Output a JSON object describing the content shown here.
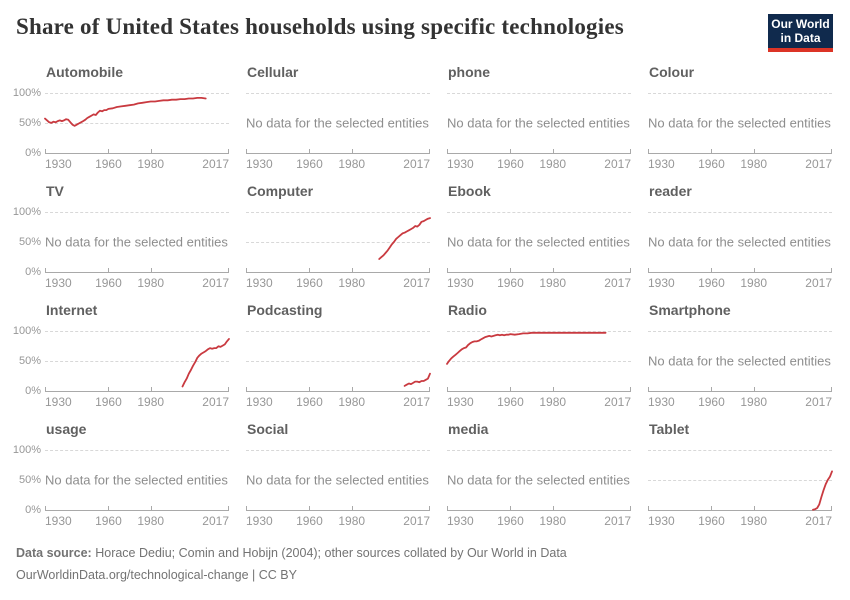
{
  "header": {
    "title": "Share of United States households using specific technologies",
    "logo_line1": "Our World",
    "logo_line2": "in Data"
  },
  "no_data_text": "No data for the selected entities",
  "colors": {
    "line": "#c93a40",
    "logo_bg": "#102a4d",
    "logo_red": "#dc3426",
    "gridline": "#d8d8d8",
    "axis": "#a9a9a9",
    "title": "#333333",
    "facet_title": "#606060",
    "tick_label": "#979797",
    "no_data": "#8d8d8d",
    "footer": "#737373"
  },
  "axis": {
    "xlim": [
      1930,
      2017
    ],
    "ylim": [
      0,
      100
    ],
    "x_ticks": [
      {
        "year": 1930,
        "label": "1930"
      },
      {
        "year": 1960,
        "label": "1960"
      },
      {
        "year": 1980,
        "label": "1980"
      },
      {
        "year": 2017,
        "label": "2017"
      }
    ],
    "y_tick_labels_top_to_bottom": [
      "100%",
      "50%",
      "0%"
    ],
    "grid": "dashed at 50% and 100%, solid axis at 0%"
  },
  "facets": [
    {
      "title": "Automobile",
      "series": "automobile"
    },
    {
      "title": "Cellular",
      "series": null
    },
    {
      "title": "phone",
      "series": null
    },
    {
      "title": "Colour",
      "series": null
    },
    {
      "title": "TV",
      "series": null
    },
    {
      "title": "Computer",
      "series": "computer"
    },
    {
      "title": "Ebook",
      "series": null
    },
    {
      "title": "reader",
      "series": null
    },
    {
      "title": "Internet",
      "series": "internet"
    },
    {
      "title": "Podcasting",
      "series": "podcasting"
    },
    {
      "title": "Radio",
      "series": "radio"
    },
    {
      "title": "Smartphone",
      "series": null
    },
    {
      "title": "usage",
      "series": null
    },
    {
      "title": "Social",
      "series": null
    },
    {
      "title": "media",
      "series": null
    },
    {
      "title": "Tablet",
      "series": "tablet"
    }
  ],
  "chart_data": [
    {
      "type": "line",
      "name": "automobile",
      "title": "Automobile",
      "unit": "%",
      "xlim": [
        1930,
        2017
      ],
      "ylim": [
        0,
        100
      ],
      "x": [
        1930,
        1931,
        1932,
        1933,
        1934,
        1935,
        1936,
        1937,
        1938,
        1939,
        1940,
        1941,
        1942,
        1943,
        1944,
        1945,
        1946,
        1947,
        1948,
        1949,
        1950,
        1951,
        1952,
        1953,
        1954,
        1955,
        1956,
        1957,
        1958,
        1959,
        1960,
        1962,
        1964,
        1966,
        1968,
        1970,
        1972,
        1974,
        1976,
        1978,
        1980,
        1982,
        1984,
        1986,
        1988,
        1990,
        1992,
        1994,
        1996,
        1998,
        2000,
        2002,
        2004,
        2006
      ],
      "y": [
        58,
        55,
        52,
        51,
        53,
        52,
        54,
        55,
        54,
        55,
        57,
        56,
        52,
        48,
        46,
        48,
        50,
        52,
        54,
        56,
        59,
        61,
        63,
        65,
        64,
        68,
        71,
        70,
        72,
        72,
        74,
        75,
        77,
        78,
        79,
        80,
        81,
        83,
        84,
        85,
        86,
        86,
        87,
        88,
        88,
        89,
        89,
        90,
        90,
        91,
        91,
        92,
        92,
        91
      ]
    },
    {
      "type": "line",
      "name": "computer",
      "title": "Computer",
      "unit": "%",
      "xlim": [
        1930,
        2017
      ],
      "ylim": [
        0,
        100
      ],
      "x": [
        1993,
        1994,
        1995,
        1996,
        1997,
        1998,
        1999,
        2000,
        2001,
        2002,
        2003,
        2004,
        2005,
        2006,
        2007,
        2008,
        2009,
        2010,
        2011,
        2012,
        2013,
        2014,
        2015,
        2016,
        2017
      ],
      "y": [
        23,
        26,
        29,
        33,
        37,
        42,
        47,
        51,
        56,
        59,
        62,
        65,
        66,
        68,
        70,
        72,
        74,
        77,
        76,
        79,
        84,
        85,
        87,
        89,
        90
      ]
    },
    {
      "type": "line",
      "name": "internet",
      "title": "Internet",
      "unit": "%",
      "xlim": [
        1930,
        2017
      ],
      "ylim": [
        0,
        100
      ],
      "x": [
        1995,
        1996,
        1997,
        1998,
        1999,
        2000,
        2001,
        2002,
        2003,
        2004,
        2005,
        2006,
        2007,
        2008,
        2009,
        2010,
        2011,
        2012,
        2013,
        2014,
        2015,
        2016,
        2017
      ],
      "y": [
        9,
        16,
        22,
        30,
        36,
        43,
        49,
        56,
        60,
        63,
        65,
        67,
        70,
        72,
        71,
        72,
        72,
        75,
        74,
        76,
        78,
        83,
        87
      ]
    },
    {
      "type": "line",
      "name": "podcasting",
      "title": "Podcasting",
      "unit": "%",
      "xlim": [
        1930,
        2017
      ],
      "ylim": [
        0,
        100
      ],
      "x": [
        2005,
        2006,
        2007,
        2008,
        2009,
        2010,
        2011,
        2012,
        2013,
        2014,
        2015,
        2016,
        2017
      ],
      "y": [
        10,
        12,
        14,
        13,
        15,
        17,
        17,
        16,
        18,
        18,
        20,
        22,
        30
      ]
    },
    {
      "type": "line",
      "name": "radio",
      "title": "Radio",
      "unit": "%",
      "xlim": [
        1930,
        2017
      ],
      "ylim": [
        0,
        100
      ],
      "x": [
        1930,
        1931,
        1932,
        1933,
        1934,
        1935,
        1936,
        1937,
        1938,
        1939,
        1940,
        1941,
        1942,
        1943,
        1944,
        1945,
        1946,
        1947,
        1948,
        1949,
        1950,
        1951,
        1952,
        1953,
        1954,
        1955,
        1956,
        1957,
        1958,
        1959,
        1960,
        1962,
        1964,
        1966,
        1968,
        1970,
        1975,
        1980,
        1985,
        1990,
        1995,
        2000,
        2005
      ],
      "y": [
        46,
        51,
        55,
        58,
        61,
        64,
        67,
        70,
        72,
        73,
        77,
        80,
        82,
        83,
        83,
        84,
        86,
        88,
        90,
        91,
        92,
        91,
        92,
        93,
        94,
        93,
        94,
        93,
        94,
        94,
        95,
        94,
        95,
        96,
        96,
        97,
        97,
        97,
        97,
        97,
        97,
        97,
        97
      ]
    },
    {
      "type": "line",
      "name": "tablet",
      "title": "Tablet",
      "unit": "%",
      "xlim": [
        1930,
        2017
      ],
      "ylim": [
        0,
        100
      ],
      "x": [
        2008,
        2009,
        2010,
        2011,
        2012,
        2013,
        2014,
        2015,
        2016,
        2017
      ],
      "y": [
        2,
        3,
        5,
        11,
        23,
        34,
        44,
        51,
        56,
        65
      ]
    }
  ],
  "footer": {
    "source_label": "Data source:",
    "source_text": "Horace Dediu; Comin and Hobijn (2004); other sources collated by Our World in Data",
    "citation": "OurWorldinData.org/technological-change | CC BY"
  }
}
